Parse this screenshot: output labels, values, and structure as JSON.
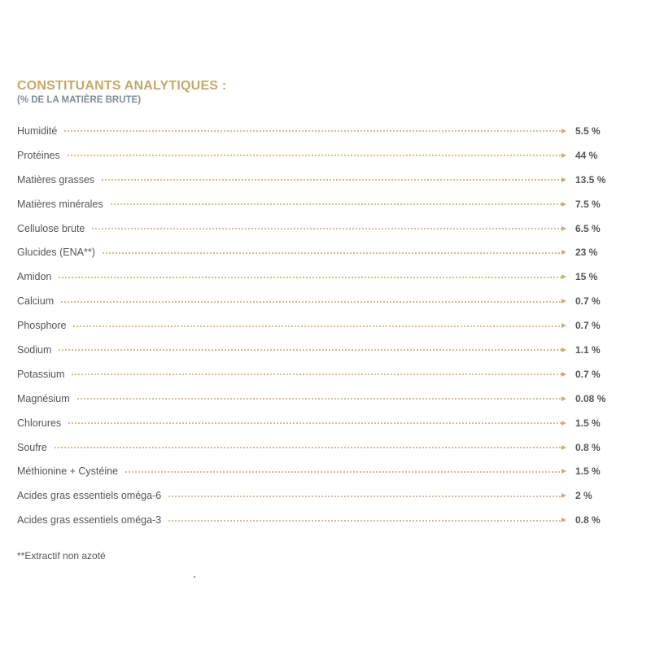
{
  "header": {
    "title": "CONSTITUANTS ANALYTIQUES :",
    "subtitle": "(% DE LA MATIÈRE BRUTE)"
  },
  "colors": {
    "title": "#c4a96a",
    "subtitle": "#7e8d95",
    "leader_dots": "#c8ad72",
    "text": "#555555"
  },
  "rows": [
    {
      "label": "Humidité",
      "value": "5.5 %"
    },
    {
      "label": "Protéines",
      "value": "44 %"
    },
    {
      "label": "Matières grasses",
      "value": "13.5 %"
    },
    {
      "label": "Matières minérales",
      "value": "7.5 %"
    },
    {
      "label": "Cellulose brute",
      "value": "6.5 %"
    },
    {
      "label": "Glucides (ENA**)",
      "value": "23 %"
    },
    {
      "label": "Amidon",
      "value": "15 %"
    },
    {
      "label": "Calcium",
      "value": "0.7 %"
    },
    {
      "label": "Phosphore",
      "value": "0.7 %"
    },
    {
      "label": "Sodium",
      "value": "1.1 %"
    },
    {
      "label": "Potassium",
      "value": "0.7 %"
    },
    {
      "label": "Magnésium",
      "value": "0.08 %"
    },
    {
      "label": "Chlorures",
      "value": "1.5 %"
    },
    {
      "label": "Soufre",
      "value": "0.8 %"
    },
    {
      "label": "Méthionine + Cystéine",
      "value": "1.5 %"
    },
    {
      "label": "Acides gras essentiels oméga-6",
      "value": "2 %"
    },
    {
      "label": "Acides gras essentiels oméga-3",
      "value": "0.8 %"
    }
  ],
  "footnote": "**Extractif non azoté"
}
